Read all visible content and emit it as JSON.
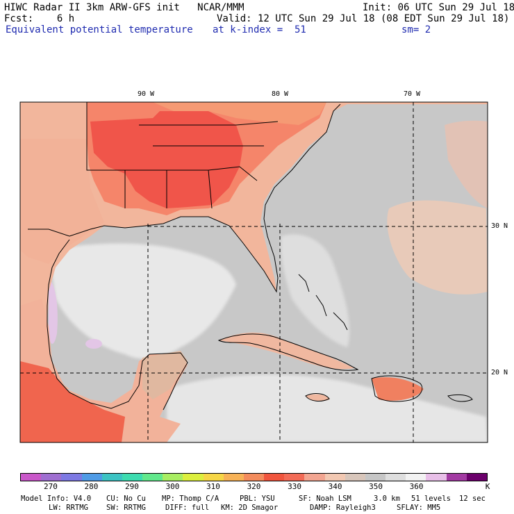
{
  "header": {
    "title": "HIWC Radar II 3km ARW-GFS init   NCAR/MMM",
    "init": "Init: 06 UTC Sun 29 Jul 18",
    "fcst": "Fcst:    6 h",
    "valid": "Valid: 12 UTC Sun 29 Jul 18 (08 EDT Sun 29 Jul 18)",
    "field": "Equivalent potential temperature",
    "level": "at k-index =  51",
    "smooth": "sm= 2"
  },
  "map": {
    "lon_labels": [
      "90 W",
      "80 W",
      "70 W"
    ],
    "lat_labels": [
      "30 N",
      "20 N"
    ],
    "colors": {
      "border": "#000000",
      "grid_dash": "#000000",
      "ocean_gray": "#c8c8c8",
      "gulf_light": "#e6e6e6",
      "warm_low": "#f3c3a6",
      "warm_mid": "#f28d68",
      "warm_high": "#f2554a"
    }
  },
  "colorbar": {
    "colors": [
      "#c957c9",
      "#9f6fd1",
      "#7d79e3",
      "#4f9be6",
      "#3cc3c3",
      "#3ddcb0",
      "#62e88c",
      "#a8ed62",
      "#dcef3e",
      "#f6d646",
      "#f7b257",
      "#f38c5d",
      "#f0553e",
      "#f26b57",
      "#f2a591",
      "#f2c8b2",
      "#d8c6bb",
      "#c6c6c6",
      "#dedede",
      "#f2f2f2",
      "#e8bfe8",
      "#a23aa2",
      "#6b006b"
    ],
    "labels": [
      "270",
      "280",
      "290",
      "300",
      "310",
      "320",
      "330",
      "340",
      "350",
      "360",
      "K"
    ]
  },
  "footer": {
    "line1": [
      "Model Info: V4.0",
      "CU: No Cu",
      "MP: Thomp C/A",
      "PBL: YSU",
      "SF: Noah LSM",
      "3.0 km",
      "51 levels",
      "12 sec"
    ],
    "line2": [
      "LW: RRTMG",
      "SW: RRTMG",
      "DIFF: full",
      "KM: 2D Smagor",
      "DAMP: Rayleigh3",
      "SFLAY: MM5"
    ]
  }
}
